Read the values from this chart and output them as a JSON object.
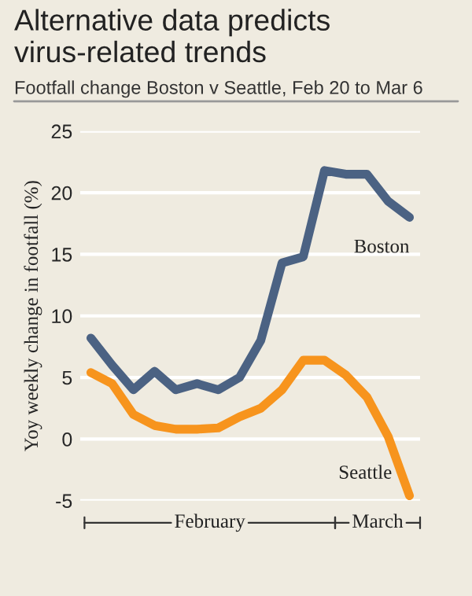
{
  "chart_data": {
    "type": "line",
    "title": "Alternative data predicts virus-related trends",
    "subtitle": "Footfall change Boston v Seattle, Feb 20 to Mar 6",
    "ylabel": "Yoy weekly change in footfall (%)",
    "categories": [
      null,
      null,
      null,
      null,
      null,
      null,
      null,
      null,
      null,
      null,
      null,
      null,
      null,
      null,
      null,
      null
    ],
    "series": [
      {
        "name": "Boston",
        "color": "#4b6283",
        "values": [
          8.2,
          6.0,
          4.0,
          5.5,
          4.0,
          4.5,
          4.0,
          5.0,
          8.0,
          14.3,
          14.8,
          21.8,
          21.5,
          21.5,
          19.3,
          18.0
        ]
      },
      {
        "name": "Seattle",
        "color": "#f7941d",
        "values": [
          5.4,
          4.5,
          2.0,
          1.1,
          0.8,
          0.8,
          0.9,
          1.8,
          2.5,
          4.0,
          6.4,
          6.4,
          5.2,
          3.4,
          0.2,
          -4.6
        ]
      }
    ],
    "ylim": [
      -5,
      25
    ],
    "yticks": [
      -5,
      0,
      5,
      10,
      15,
      20,
      25
    ],
    "grid": "y",
    "legend": false,
    "marker": "none",
    "line_style": "solid",
    "annotations": [
      "February",
      "March"
    ]
  }
}
